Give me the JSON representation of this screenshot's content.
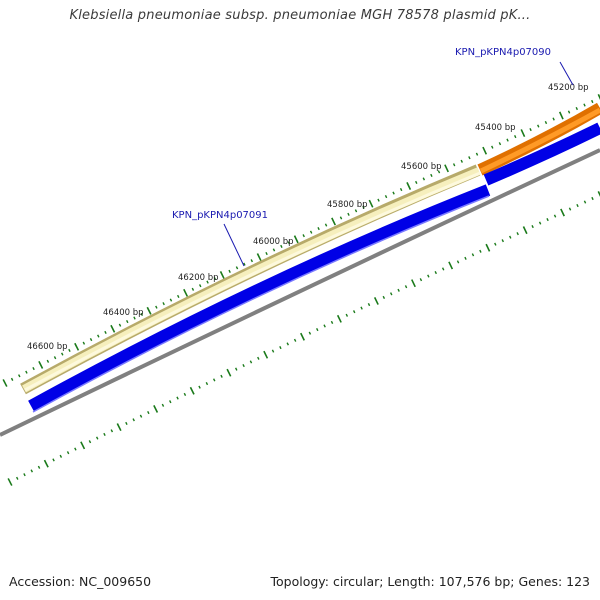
{
  "title": "Klebsiella pneumoniae subsp. pneumoniae MGH 78578 plasmid pK...",
  "footer": {
    "accession": "Accession: NC_009650",
    "summary": "Topology: circular; Length: 107,576 bp; Genes: 123"
  },
  "scale_labels": [
    "45200 bp",
    "45400 bp",
    "45600 bp",
    "45800 bp",
    "46000 bp",
    "46200 bp",
    "46400 bp",
    "46600 bp"
  ],
  "genes": [
    {
      "name": "KPN_pKPN4p07090",
      "color": "#ff8c00"
    },
    {
      "name": "KPN_pKPN4p07091",
      "color": "#f3eaa6"
    }
  ],
  "colors": {
    "backbone": "#808080",
    "cds_strand": "#0000e6",
    "tick": "#1a7a1a",
    "gene_label": "#1a1ab0"
  }
}
